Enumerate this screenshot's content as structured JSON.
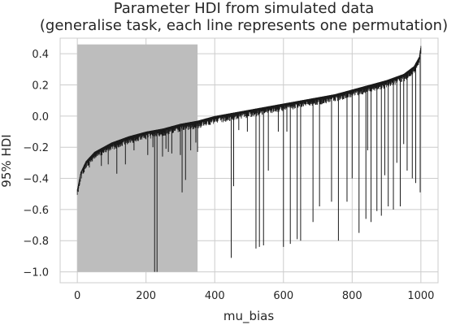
{
  "chart_data": {
    "type": "line",
    "title_lines": [
      "Parameter HDI from simulated data",
      "(generalise task, each line represents one permutation)"
    ],
    "xlabel": "mu_bias",
    "ylabel": "95% HDI",
    "xlim": [
      -50,
      1050
    ],
    "ylim": [
      -1.07,
      0.5
    ],
    "x_ticks": [
      0,
      200,
      400,
      600,
      800,
      1000
    ],
    "y_ticks": [
      -1.0,
      -0.8,
      -0.6,
      -0.4,
      -0.2,
      0.0,
      0.2,
      0.4
    ],
    "x_tick_labels": [
      "0",
      "200",
      "400",
      "600",
      "800",
      "1000"
    ],
    "y_tick_labels": [
      "−1.0",
      "−0.8",
      "−0.6",
      "−0.4",
      "−0.2",
      "0.0",
      "0.2",
      "0.4"
    ],
    "grid": true,
    "n_permutations": 1000,
    "shaded_region": {
      "x_start": 0,
      "x_end": 350,
      "y_bottom": -1.0,
      "y_top": 0.46,
      "color": "#bdbdbd"
    },
    "upper_bound_curve": [
      [
        0,
        -0.47
      ],
      [
        10,
        -0.36
      ],
      [
        25,
        -0.29
      ],
      [
        50,
        -0.23
      ],
      [
        100,
        -0.17
      ],
      [
        150,
        -0.13
      ],
      [
        200,
        -0.1
      ],
      [
        250,
        -0.08
      ],
      [
        300,
        -0.05
      ],
      [
        350,
        -0.03
      ],
      [
        400,
        0.0
      ],
      [
        450,
        0.02
      ],
      [
        500,
        0.04
      ],
      [
        550,
        0.06
      ],
      [
        600,
        0.08
      ],
      [
        650,
        0.1
      ],
      [
        700,
        0.12
      ],
      [
        750,
        0.14
      ],
      [
        800,
        0.17
      ],
      [
        850,
        0.2
      ],
      [
        900,
        0.23
      ],
      [
        950,
        0.27
      ],
      [
        980,
        0.32
      ],
      [
        995,
        0.38
      ],
      [
        1000,
        0.45
      ]
    ],
    "long_lower_tails": [
      [
        20,
        -0.36
      ],
      [
        35,
        -0.33
      ],
      [
        70,
        -0.32
      ],
      [
        90,
        -0.31
      ],
      [
        115,
        -0.37
      ],
      [
        140,
        -0.31
      ],
      [
        165,
        -0.22
      ],
      [
        205,
        -0.25
      ],
      [
        220,
        -0.2
      ],
      [
        225,
        -1.0
      ],
      [
        232,
        -1.0
      ],
      [
        248,
        -0.26
      ],
      [
        258,
        -0.21
      ],
      [
        265,
        -0.23
      ],
      [
        275,
        -0.24
      ],
      [
        300,
        -0.25
      ],
      [
        305,
        -0.49
      ],
      [
        315,
        -0.41
      ],
      [
        330,
        -0.22
      ],
      [
        345,
        -0.17
      ],
      [
        350,
        -0.23
      ],
      [
        375,
        -0.06
      ],
      [
        448,
        -0.91
      ],
      [
        455,
        -0.45
      ],
      [
        470,
        -0.09
      ],
      [
        495,
        -0.1
      ],
      [
        520,
        -0.85
      ],
      [
        530,
        -0.84
      ],
      [
        542,
        -0.83
      ],
      [
        556,
        -0.35
      ],
      [
        585,
        -0.1
      ],
      [
        600,
        -0.84
      ],
      [
        610,
        -0.1
      ],
      [
        620,
        -0.82
      ],
      [
        640,
        -0.79
      ],
      [
        650,
        -0.8
      ],
      [
        686,
        -0.68
      ],
      [
        705,
        -0.58
      ],
      [
        740,
        -0.55
      ],
      [
        760,
        -0.8
      ],
      [
        785,
        -0.55
      ],
      [
        800,
        -0.4
      ],
      [
        820,
        -0.75
      ],
      [
        840,
        -0.66
      ],
      [
        845,
        -0.22
      ],
      [
        855,
        -0.68
      ],
      [
        872,
        -0.61
      ],
      [
        885,
        -0.64
      ],
      [
        895,
        -0.38
      ],
      [
        905,
        -0.58
      ],
      [
        920,
        -0.6
      ],
      [
        930,
        -0.3
      ],
      [
        940,
        -0.58
      ],
      [
        950,
        -0.18
      ],
      [
        960,
        -0.35
      ],
      [
        975,
        -0.4
      ],
      [
        985,
        -0.43
      ],
      [
        998,
        -0.49
      ]
    ]
  }
}
